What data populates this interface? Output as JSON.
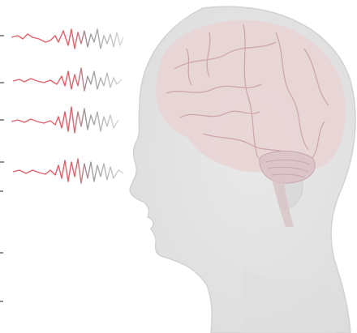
{
  "image": {
    "colors": {
      "background": "#ffffff",
      "head_fill": "#e4e4e4",
      "head_edge": "#d2d2d2",
      "brain_fill": "#e9d3d5",
      "brain_lines": "#c79ba0",
      "wave_red": "#e0606a",
      "wave_gray": "#9a9a9a",
      "edge_marks": "#8f8f8f"
    },
    "icons": [
      "eeg-wave-icon",
      "brain-icon",
      "head-silhouette-icon"
    ],
    "wave_count": 4
  }
}
